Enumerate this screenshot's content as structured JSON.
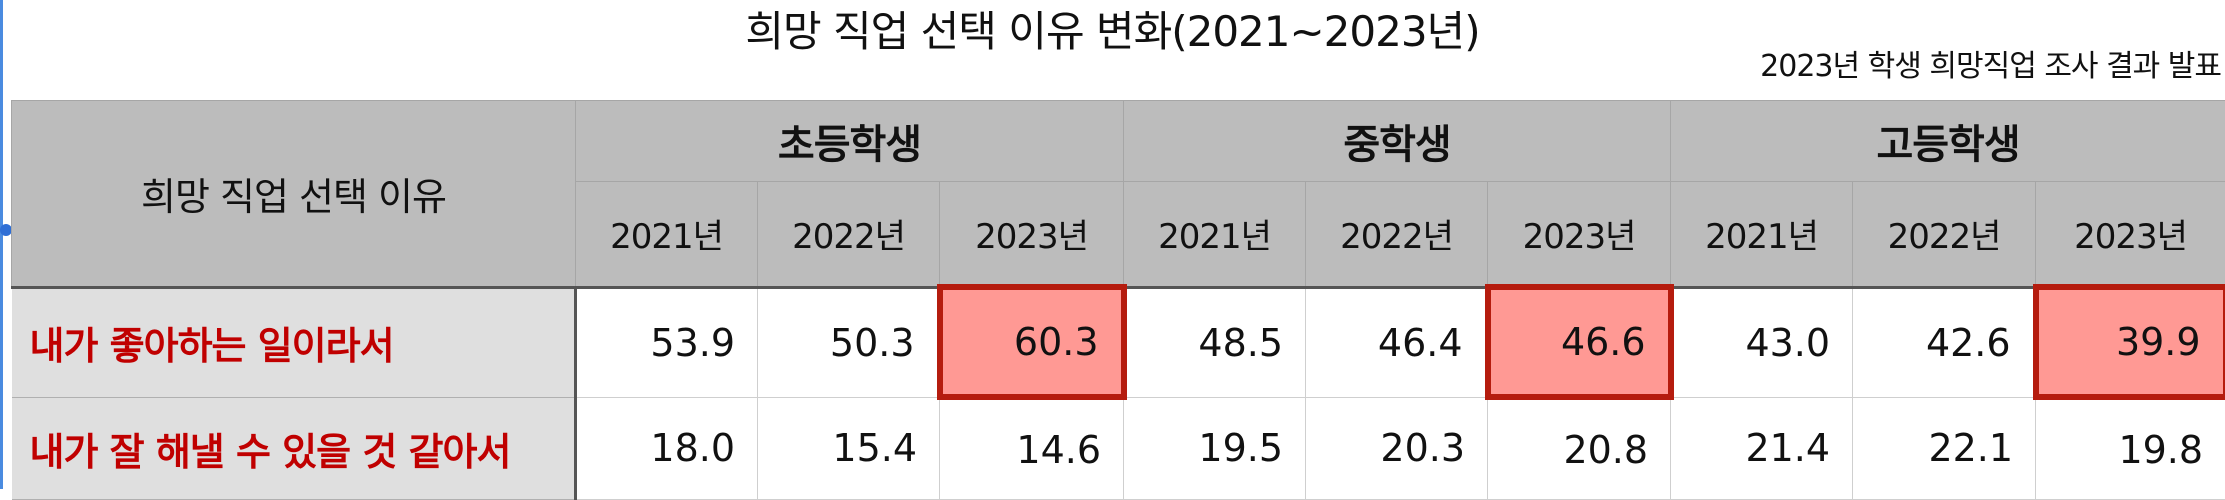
{
  "title": "희망 직업 선택 이유 변화(2021~2023년)",
  "subtitle": "2023년 학생 희망직업 조사 결과 발표",
  "table": {
    "corner_label": "희망 직업 선택 이유",
    "groups": [
      "초등학생",
      "중학생",
      "고등학생"
    ],
    "years": [
      "2021년",
      "2022년",
      "2023년",
      "2021년",
      "2022년",
      "2023년",
      "2021년",
      "2022년",
      "2023년"
    ],
    "rows": [
      {
        "label": "내가 좋아하는 일이라서",
        "values": [
          "53.9",
          "50.3",
          "60.3",
          "48.5",
          "46.4",
          "46.6",
          "43.0",
          "42.6",
          "39.9"
        ],
        "highlighted": [
          false,
          false,
          true,
          false,
          false,
          true,
          false,
          false,
          true
        ]
      },
      {
        "label": "내가 잘 해낼 수 있을 것 같아서",
        "values": [
          "18.0",
          "15.4",
          "14.6",
          "19.5",
          "20.3",
          "20.8",
          "21.4",
          "22.1",
          "19.8"
        ],
        "highlighted": [
          false,
          false,
          false,
          false,
          false,
          false,
          false,
          false,
          false
        ]
      }
    ]
  },
  "colors": {
    "header_bg": "#bcbcbc",
    "row_label_bg": "#dfdfdf",
    "row_label_text": "#c00000",
    "highlight_fill": "#ff9994",
    "highlight_border": "#b51c0e"
  }
}
